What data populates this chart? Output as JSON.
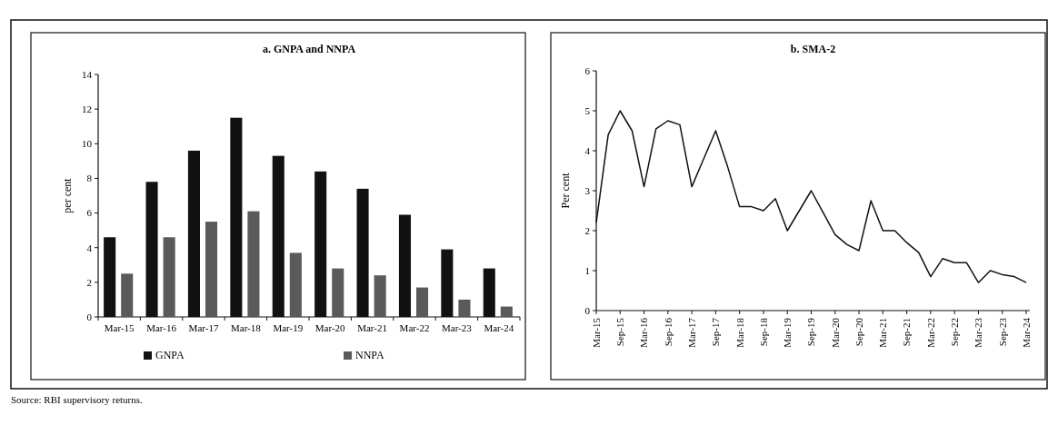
{
  "chart_data": [
    {
      "type": "bar",
      "title": "a. GNPA and NNPA",
      "ylabel": "per cent",
      "categories": [
        "Mar-15",
        "Mar-16",
        "Mar-17",
        "Mar-18",
        "Mar-19",
        "Mar-20",
        "Mar-21",
        "Mar-22",
        "Mar-23",
        "Mar-24"
      ],
      "series": [
        {
          "name": "GNPA",
          "color": "#111111",
          "values": [
            4.6,
            7.8,
            9.6,
            11.5,
            9.3,
            8.4,
            7.4,
            5.9,
            3.9,
            2.8
          ]
        },
        {
          "name": "NNPA",
          "color": "#5a5a5a",
          "values": [
            2.5,
            4.6,
            5.5,
            6.1,
            3.7,
            2.8,
            2.4,
            1.7,
            1.0,
            0.6
          ]
        }
      ],
      "ylim": [
        0,
        14
      ],
      "yticks": [
        0,
        2,
        4,
        6,
        8,
        10,
        12,
        14
      ],
      "grid": false,
      "legend": "bottom",
      "annotations": [
        "Source: RBI supervisory returns."
      ]
    },
    {
      "type": "line",
      "title": "b. SMA-2",
      "ylabel": "Per cent",
      "categories": [
        "Mar-15",
        null,
        "Sep-15",
        null,
        "Mar-16",
        null,
        "Sep-16",
        null,
        "Mar-17",
        null,
        "Sep-17",
        null,
        "Mar-18",
        null,
        "Sep-18",
        null,
        "Mar-19",
        null,
        "Sep-19",
        null,
        "Mar-20",
        null,
        "Sep-20",
        null,
        "Mar-21",
        null,
        "Sep-21",
        null,
        "Mar-22",
        null,
        "Sep-22",
        null,
        "Mar-23",
        null,
        "Sep-23",
        null,
        "Mar-24"
      ],
      "series": [
        {
          "color": "#111111",
          "values": [
            2.2,
            4.4,
            5.0,
            4.5,
            3.1,
            4.55,
            4.75,
            4.65,
            3.1,
            3.8,
            4.5,
            3.6,
            2.6,
            2.6,
            2.5,
            2.8,
            2.0,
            2.5,
            3.0,
            2.45,
            1.9,
            1.65,
            1.5,
            2.75,
            2.0,
            2.0,
            1.7,
            1.45,
            0.85,
            1.3,
            1.2,
            1.2,
            0.7,
            1.0,
            0.9,
            0.85,
            0.7
          ]
        }
      ],
      "ylim": [
        0,
        6
      ],
      "yticks": [
        0,
        1,
        2,
        3,
        4,
        5,
        6
      ],
      "grid": false,
      "legend": false,
      "marker": "none",
      "line_style": "solid"
    }
  ]
}
